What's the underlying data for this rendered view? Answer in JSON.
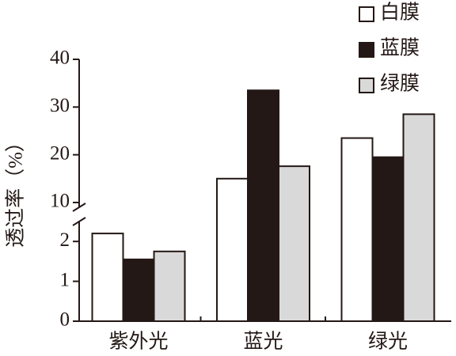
{
  "chart_data": {
    "type": "bar",
    "y_label": "透过率（%）",
    "categories": [
      "紫外光",
      "蓝光",
      "绿光"
    ],
    "series": [
      {
        "name": "白膜",
        "color": "#ffffff",
        "values": [
          2.2,
          15,
          23.5
        ]
      },
      {
        "name": "蓝膜",
        "color": "#231815",
        "values": [
          1.55,
          33.5,
          19.5
        ]
      },
      {
        "name": "绿膜",
        "color": "#d9d9d9",
        "values": [
          1.75,
          17.6,
          28.5
        ]
      }
    ],
    "ylim": [
      0,
      40
    ],
    "ybreak": [
      2.5,
      9
    ],
    "yticks": [
      0,
      1,
      2,
      10,
      20,
      30,
      40
    ],
    "legend": "top-right"
  }
}
